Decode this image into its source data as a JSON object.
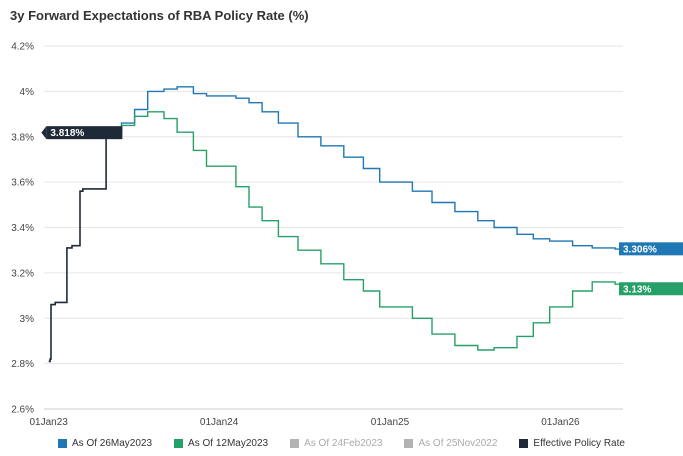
{
  "title": "3y Forward Expectations of RBA Policy Rate (%)",
  "chart_data": {
    "type": "line",
    "title": "3y Forward Expectations of RBA Policy Rate (%)",
    "x_type": "date",
    "xlim": [
      "2022-12-22",
      "2026-05-15"
    ],
    "ylim": [
      2.6,
      4.2
    ],
    "y_ticks": [
      "2.6%",
      "2.8%",
      "3%",
      "3.2%",
      "3.4%",
      "3.6%",
      "3.8%",
      "4%",
      "4.2%"
    ],
    "x_ticks": [
      {
        "date": "2023-01-01",
        "label": "01Jan23"
      },
      {
        "date": "2024-01-01",
        "label": "01Jan24"
      },
      {
        "date": "2025-01-01",
        "label": "01Jan25"
      },
      {
        "date": "2026-01-01",
        "label": "01Jan26"
      }
    ],
    "grid": "horizontal",
    "legend_position": "bottom",
    "step": true,
    "series": [
      {
        "name": "As Of 26May2023",
        "color": "#1f77b4",
        "active": true,
        "end_label": "3.306%",
        "points": [
          [
            "2023-05-26",
            3.82
          ],
          [
            "2023-06-06",
            3.86
          ],
          [
            "2023-07-04",
            3.92
          ],
          [
            "2023-08-01",
            4.0
          ],
          [
            "2023-09-05",
            4.01
          ],
          [
            "2023-10-03",
            4.02
          ],
          [
            "2023-11-07",
            3.99
          ],
          [
            "2023-12-05",
            3.98
          ],
          [
            "2024-02-06",
            3.97
          ],
          [
            "2024-03-05",
            3.95
          ],
          [
            "2024-04-02",
            3.91
          ],
          [
            "2024-05-07",
            3.86
          ],
          [
            "2024-06-18",
            3.8
          ],
          [
            "2024-08-06",
            3.76
          ],
          [
            "2024-09-24",
            3.71
          ],
          [
            "2024-11-05",
            3.66
          ],
          [
            "2024-12-10",
            3.6
          ],
          [
            "2025-02-18",
            3.56
          ],
          [
            "2025-04-01",
            3.51
          ],
          [
            "2025-05-20",
            3.47
          ],
          [
            "2025-07-08",
            3.43
          ],
          [
            "2025-08-12",
            3.4
          ],
          [
            "2025-09-30",
            3.37
          ],
          [
            "2025-11-04",
            3.35
          ],
          [
            "2025-12-09",
            3.34
          ],
          [
            "2026-01-27",
            3.32
          ],
          [
            "2026-03-10",
            3.31
          ],
          [
            "2026-04-28",
            3.305
          ],
          [
            "2026-05-15",
            3.306
          ]
        ]
      },
      {
        "name": "As Of 12May2023",
        "color": "#27a068",
        "active": true,
        "end_label": "3.13%",
        "points": [
          [
            "2023-05-12",
            3.82
          ],
          [
            "2023-06-06",
            3.85
          ],
          [
            "2023-07-04",
            3.89
          ],
          [
            "2023-08-01",
            3.91
          ],
          [
            "2023-09-05",
            3.88
          ],
          [
            "2023-10-03",
            3.82
          ],
          [
            "2023-11-07",
            3.74
          ],
          [
            "2023-12-05",
            3.67
          ],
          [
            "2024-02-06",
            3.58
          ],
          [
            "2024-03-05",
            3.49
          ],
          [
            "2024-04-02",
            3.43
          ],
          [
            "2024-05-07",
            3.36
          ],
          [
            "2024-06-18",
            3.3
          ],
          [
            "2024-08-06",
            3.24
          ],
          [
            "2024-09-24",
            3.17
          ],
          [
            "2024-11-05",
            3.12
          ],
          [
            "2024-12-10",
            3.05
          ],
          [
            "2025-02-18",
            3.0
          ],
          [
            "2025-04-01",
            2.93
          ],
          [
            "2025-05-20",
            2.88
          ],
          [
            "2025-07-08",
            2.86
          ],
          [
            "2025-08-12",
            2.87
          ],
          [
            "2025-09-30",
            2.92
          ],
          [
            "2025-11-04",
            2.98
          ],
          [
            "2025-12-09",
            3.05
          ],
          [
            "2026-01-27",
            3.12
          ],
          [
            "2026-03-10",
            3.16
          ],
          [
            "2026-04-28",
            3.15
          ],
          [
            "2026-05-15",
            3.13
          ]
        ]
      },
      {
        "name": "As Of 24Feb2023",
        "color": "#b3b3b3",
        "active": false,
        "points": []
      },
      {
        "name": "As Of 25Nov2022",
        "color": "#b3b3b3",
        "active": false,
        "points": []
      },
      {
        "name": "Effective Policy Rate",
        "color": "#1e2a38",
        "active": true,
        "end_label": "3.818%",
        "points": [
          [
            "2023-01-01",
            2.81
          ],
          [
            "2023-01-04",
            2.82
          ],
          [
            "2023-01-06",
            3.06
          ],
          [
            "2023-01-12",
            3.06
          ],
          [
            "2023-01-15",
            3.07
          ],
          [
            "2023-02-07",
            3.07
          ],
          [
            "2023-02-09",
            3.31
          ],
          [
            "2023-02-20",
            3.32
          ],
          [
            "2023-03-07",
            3.32
          ],
          [
            "2023-03-09",
            3.56
          ],
          [
            "2023-03-15",
            3.57
          ],
          [
            "2023-04-04",
            3.57
          ],
          [
            "2023-04-06",
            3.57
          ],
          [
            "2023-05-02",
            3.57
          ],
          [
            "2023-05-04",
            3.81
          ],
          [
            "2023-05-12",
            3.818
          ],
          [
            "2023-05-26",
            3.818
          ]
        ]
      }
    ]
  },
  "legend": [
    {
      "label": "As Of 26May2023",
      "color": "#1f77b4",
      "active": true
    },
    {
      "label": "As Of 12May2023",
      "color": "#27a068",
      "active": true
    },
    {
      "label": "As Of 24Feb2023",
      "color": "#b3b3b3",
      "active": false
    },
    {
      "label": "As Of 25Nov2022",
      "color": "#b3b3b3",
      "active": false
    },
    {
      "label": "Effective Policy Rate",
      "color": "#1e2a38",
      "active": true
    }
  ]
}
